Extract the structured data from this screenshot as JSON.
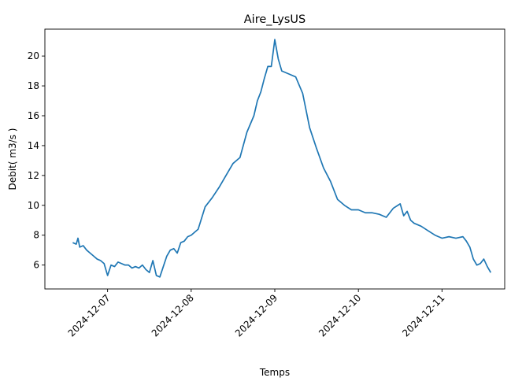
{
  "chart_data": {
    "type": "line",
    "title": "Aire_LysUS",
    "xlabel": "Temps",
    "ylabel": "Debit( m3/s )",
    "x_ticks": [
      "2024-12-07",
      "2024-12-08",
      "2024-12-09",
      "2024-12-10",
      "2024-12-11"
    ],
    "y_ticks": [
      6,
      8,
      10,
      12,
      14,
      16,
      18,
      20
    ],
    "xlim": [
      "2024-12-06T06:00",
      "2024-12-11T18:00"
    ],
    "ylim": [
      4.4,
      21.8
    ],
    "grid": false,
    "color": "#1f77b4",
    "series": [
      {
        "x": [
          "2024-12-06T14:00",
          "2024-12-06T15:00",
          "2024-12-06T15:30",
          "2024-12-06T16:00",
          "2024-12-06T17:00",
          "2024-12-06T18:00",
          "2024-12-06T19:00",
          "2024-12-06T20:00",
          "2024-12-06T21:00",
          "2024-12-06T22:00",
          "2024-12-06T23:00",
          "2024-12-07T00:00",
          "2024-12-07T01:00",
          "2024-12-07T02:00",
          "2024-12-07T03:00",
          "2024-12-07T04:00",
          "2024-12-07T05:00",
          "2024-12-07T06:00",
          "2024-12-07T07:00",
          "2024-12-07T08:00",
          "2024-12-07T09:00",
          "2024-12-07T10:00",
          "2024-12-07T11:00",
          "2024-12-07T12:00",
          "2024-12-07T13:00",
          "2024-12-07T14:00",
          "2024-12-07T15:00",
          "2024-12-07T16:00",
          "2024-12-07T17:00",
          "2024-12-07T18:00",
          "2024-12-07T19:00",
          "2024-12-07T20:00",
          "2024-12-07T21:00",
          "2024-12-07T22:00",
          "2024-12-07T23:00",
          "2024-12-08T00:00",
          "2024-12-08T02:00",
          "2024-12-08T04:00",
          "2024-12-08T06:00",
          "2024-12-08T08:00",
          "2024-12-08T10:00",
          "2024-12-08T12:00",
          "2024-12-08T13:00",
          "2024-12-08T14:00",
          "2024-12-08T16:00",
          "2024-12-08T18:00",
          "2024-12-08T19:00",
          "2024-12-08T20:00",
          "2024-12-08T21:00",
          "2024-12-08T22:00",
          "2024-12-08T23:00",
          "2024-12-09T00:00",
          "2024-12-09T01:00",
          "2024-12-09T02:00",
          "2024-12-09T04:00",
          "2024-12-09T06:00",
          "2024-12-09T08:00",
          "2024-12-09T10:00",
          "2024-12-09T12:00",
          "2024-12-09T14:00",
          "2024-12-09T16:00",
          "2024-12-09T18:00",
          "2024-12-09T20:00",
          "2024-12-09T22:00",
          "2024-12-10T00:00",
          "2024-12-10T02:00",
          "2024-12-10T04:00",
          "2024-12-10T06:00",
          "2024-12-10T08:00",
          "2024-12-10T10:00",
          "2024-12-10T12:00",
          "2024-12-10T13:00",
          "2024-12-10T14:00",
          "2024-12-10T15:00",
          "2024-12-10T16:00",
          "2024-12-10T18:00",
          "2024-12-10T20:00",
          "2024-12-10T22:00",
          "2024-12-11T00:00",
          "2024-12-11T02:00",
          "2024-12-11T04:00",
          "2024-12-11T06:00",
          "2024-12-11T07:00",
          "2024-12-11T08:00",
          "2024-12-11T09:00",
          "2024-12-11T10:00",
          "2024-12-11T11:00",
          "2024-12-11T12:00",
          "2024-12-11T13:00",
          "2024-12-11T14:00"
        ],
        "y": [
          7.5,
          7.4,
          7.8,
          7.2,
          7.3,
          7.0,
          6.8,
          6.6,
          6.4,
          6.3,
          6.1,
          5.3,
          6.0,
          5.9,
          6.2,
          6.1,
          6.0,
          6.0,
          5.8,
          5.9,
          5.8,
          6.0,
          5.7,
          5.5,
          6.3,
          5.3,
          5.2,
          5.9,
          6.6,
          7.0,
          7.1,
          6.8,
          7.5,
          7.6,
          7.9,
          8.0,
          8.4,
          9.9,
          10.5,
          11.2,
          12.0,
          12.8,
          13.0,
          13.2,
          14.9,
          16.0,
          17.0,
          17.6,
          18.5,
          19.3,
          19.3,
          21.1,
          19.8,
          19.0,
          18.8,
          18.6,
          17.5,
          15.2,
          13.8,
          12.5,
          11.6,
          10.4,
          10.0,
          9.7,
          9.7,
          9.5,
          9.5,
          9.4,
          9.2,
          9.8,
          10.1,
          9.3,
          9.6,
          9.0,
          8.8,
          8.6,
          8.3,
          8.0,
          7.8,
          7.9,
          7.8,
          7.9,
          7.6,
          7.2,
          6.4,
          6.0,
          6.1,
          6.4,
          5.9,
          5.5
        ]
      }
    ]
  }
}
